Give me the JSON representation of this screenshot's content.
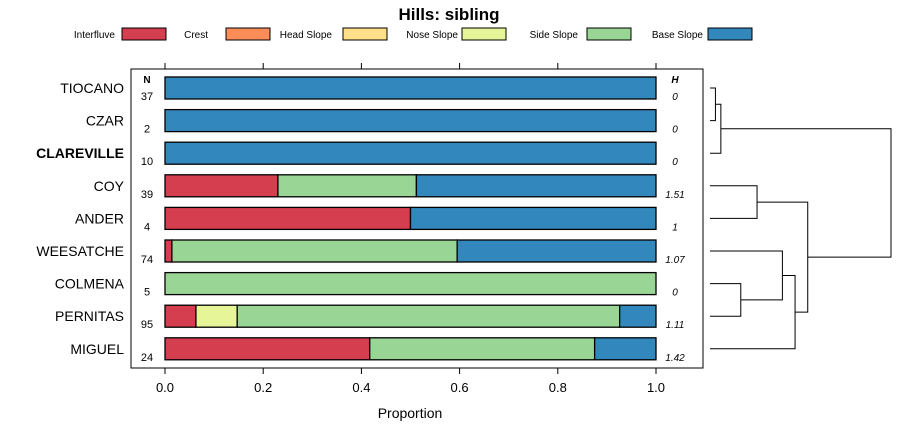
{
  "chart_data": {
    "type": "bar",
    "orientation": "horizontal",
    "stacked": true,
    "title": "Hills: sibling",
    "xlabel": "Proportion",
    "ylabel": "",
    "xlim": [
      0,
      1
    ],
    "xticks": [
      "0.0",
      "0.2",
      "0.4",
      "0.6",
      "0.8",
      "1.0"
    ],
    "xtick_values": [
      0,
      0.2,
      0.4,
      0.6,
      0.8,
      1.0
    ],
    "n_header": "N",
    "h_header": "H",
    "legend": [
      {
        "name": "Interfluve",
        "color": "#d53e4f"
      },
      {
        "name": "Crest",
        "color": "#fc8d59"
      },
      {
        "name": "Head Slope",
        "color": "#fee08b"
      },
      {
        "name": "Nose Slope",
        "color": "#e6f598"
      },
      {
        "name": "Side Slope",
        "color": "#99d594"
      },
      {
        "name": "Base Slope",
        "color": "#3288bd"
      }
    ],
    "categories": [
      "TIOCANO",
      "CZAR",
      "CLAREVILLE",
      "COY",
      "ANDER",
      "WEESATCHE",
      "COLMENA",
      "PERNITAS",
      "MIGUEL"
    ],
    "highlight": "CLAREVILLE",
    "n": [
      "37",
      "2",
      "10",
      "39",
      "4",
      "74",
      "5",
      "95",
      "24"
    ],
    "h": [
      "0",
      "0",
      "0",
      "1.51",
      "1",
      "1.07",
      "0",
      "1.11",
      "1.42"
    ],
    "series": [
      {
        "name": "Interfluve",
        "values": [
          0,
          0,
          0,
          0.23,
          0.5,
          0.014,
          0,
          0.063,
          0.417
        ]
      },
      {
        "name": "Crest",
        "values": [
          0,
          0,
          0,
          0,
          0,
          0,
          0,
          0,
          0
        ]
      },
      {
        "name": "Head Slope",
        "values": [
          0,
          0,
          0,
          0,
          0,
          0,
          0,
          0,
          0
        ]
      },
      {
        "name": "Nose Slope",
        "values": [
          0,
          0,
          0,
          0,
          0,
          0,
          0,
          0.084,
          0
        ]
      },
      {
        "name": "Side Slope",
        "values": [
          0,
          0,
          0,
          0.282,
          0,
          0.581,
          1.0,
          0.779,
          0.458
        ]
      },
      {
        "name": "Base Slope",
        "values": [
          1.0,
          1.0,
          1.0,
          0.488,
          0.5,
          0.405,
          0,
          0.074,
          0.125
        ]
      }
    ],
    "dendrogram": {
      "merges": [
        {
          "left": 0,
          "right": 1,
          "height": 0.03
        },
        {
          "left": 2,
          "right": -1,
          "height": 0.06
        },
        {
          "left": 3,
          "right": 4,
          "height": 0.26
        },
        {
          "left": 6,
          "right": 7,
          "height": 0.17
        },
        {
          "left": 5,
          "right": -4,
          "height": 0.4
        },
        {
          "left": -5,
          "right": 8,
          "height": 0.47
        },
        {
          "left": -3,
          "right": -6,
          "height": 0.54
        },
        {
          "left": -2,
          "right": -7,
          "height": 1.0
        }
      ]
    }
  }
}
